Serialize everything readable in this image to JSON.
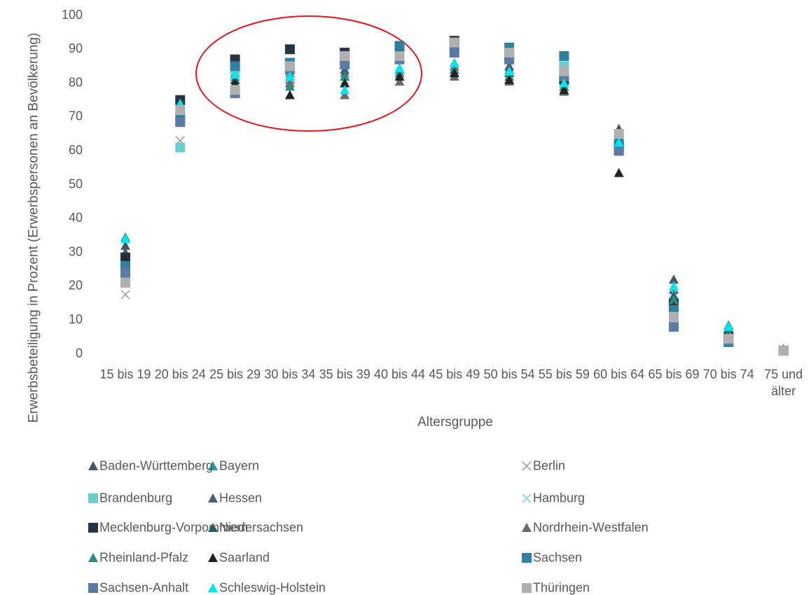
{
  "chart_data": {
    "type": "scatter",
    "y_label": "Erwerbsbeteiligung in Prozent (Erwerbspersonen an Bevölkerung)",
    "x_label": "Altersgruppe",
    "categories": [
      "15 bis 19",
      "20 bis 24",
      "25 bis 29",
      "30 bis 34",
      "35 bis 39",
      "40 bis 44",
      "45 bis 49",
      "50 bis 54",
      "55 bis 59",
      "60 bis 64",
      "65 bis 69",
      "70 bis 74",
      "75 und älter"
    ],
    "ylim": [
      0,
      100
    ],
    "yticks": [
      0,
      10,
      20,
      30,
      40,
      50,
      60,
      70,
      80,
      90,
      100
    ],
    "series": [
      {
        "name": "Baden-Württemberg",
        "color": "#44546a",
        "marker": "triangle",
        "values": [
          32,
          74,
          81,
          81,
          83,
          84,
          85,
          85,
          81,
          66.5,
          22,
          8,
          1.5
        ]
      },
      {
        "name": "Bayern",
        "color": "#1fa0a0",
        "marker": "triangle",
        "values": [
          34.5,
          75,
          83,
          83,
          82,
          84,
          86,
          84,
          81,
          64,
          20,
          8.5,
          1.5
        ]
      },
      {
        "name": "Berlin",
        "color": "#a0a0a0",
        "marker": "x",
        "values": [
          17.5,
          63,
          79,
          81,
          81,
          82,
          83,
          81,
          79,
          62,
          17,
          7,
          1
        ]
      },
      {
        "name": "Brandenburg",
        "color": "#6ccdcd",
        "marker": "square",
        "values": [
          23,
          61,
          84,
          86,
          87,
          89,
          91,
          88,
          85,
          63,
          12,
          5,
          1
        ]
      },
      {
        "name": "Hessen",
        "color": "#4a5a7a",
        "marker": "triangle",
        "values": [
          30,
          72,
          82,
          82,
          84,
          84,
          92,
          84,
          80,
          64,
          19,
          7.5,
          1
        ]
      },
      {
        "name": "Hamburg",
        "color": "#7fd4e0",
        "marker": "x",
        "values": [
          25,
          70,
          80,
          80,
          81,
          82,
          84,
          82,
          79,
          61,
          18,
          7,
          1
        ]
      },
      {
        "name": "Mecklenburg-Vorpommern",
        "color": "#243444",
        "marker": "square",
        "values": [
          28.5,
          75,
          87,
          90,
          89,
          89,
          92.5,
          88,
          81,
          61,
          15,
          5,
          1
        ]
      },
      {
        "name": "Niedersachsen",
        "color": "#135e5e",
        "marker": "triangle",
        "values": [
          27,
          74,
          81,
          82,
          82,
          83,
          84,
          83,
          79,
          61,
          17,
          6.5,
          1
        ]
      },
      {
        "name": "Nordrhein-Westfalen",
        "color": "#6a6a6a",
        "marker": "triangle",
        "values": [
          27,
          71,
          79,
          80,
          76.5,
          80.5,
          82,
          80.5,
          77.5,
          60,
          16,
          6,
          1
        ]
      },
      {
        "name": "Rheinland-Pfalz",
        "color": "#2e8b80",
        "marker": "triangle",
        "values": [
          28,
          73,
          80,
          79,
          82,
          83,
          84,
          82,
          79,
          62,
          16,
          6,
          1
        ]
      },
      {
        "name": "Saarland",
        "color": "#222222",
        "marker": "triangle",
        "values": [
          28,
          73,
          80,
          76.5,
          80,
          82,
          83,
          81,
          78,
          53.5,
          14,
          5,
          1
        ]
      },
      {
        "name": "Sachsen",
        "color": "#2e7fa0",
        "marker": "square",
        "values": [
          26,
          70,
          85,
          86,
          87,
          91,
          91,
          90.5,
          88,
          62,
          13,
          3.5,
          1
        ]
      },
      {
        "name": "Sachsen-Anhalt",
        "color": "#5b7aa8",
        "marker": "square",
        "values": [
          24,
          68.5,
          77,
          84,
          85.5,
          87,
          89,
          87,
          82,
          60,
          8,
          4,
          1
        ]
      },
      {
        "name": "Schleswig-Holstein",
        "color": "#00e5f0",
        "marker": "triangle",
        "values": [
          34,
          74,
          82.5,
          82,
          78,
          84.5,
          86,
          83.5,
          80,
          62.5,
          20,
          8,
          1
        ]
      },
      {
        "name": "Thüringen",
        "color": "#b0b0b0",
        "marker": "square",
        "values": [
          21,
          72,
          78,
          85,
          88,
          88,
          92,
          89,
          83.5,
          65,
          11,
          4.5,
          1
        ]
      }
    ]
  }
}
